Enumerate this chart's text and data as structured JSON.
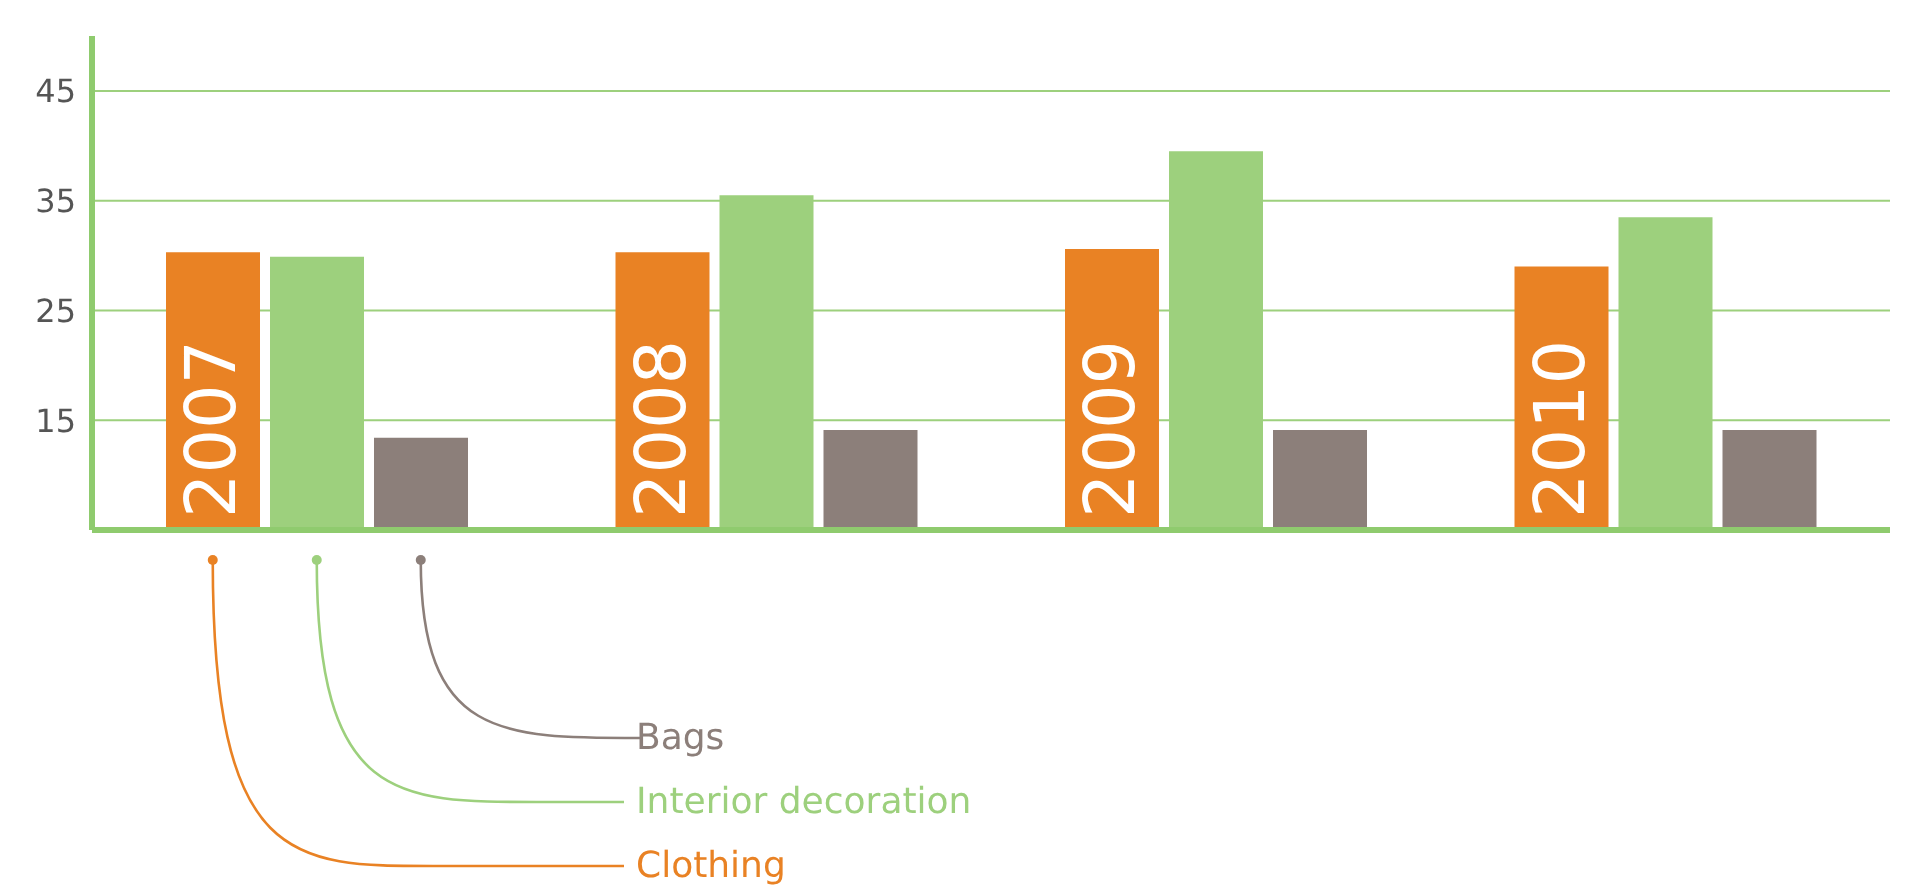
{
  "chart_data": {
    "type": "bar",
    "categories": [
      "2007",
      "2008",
      "2009",
      "2010"
    ],
    "series": [
      {
        "name": "Clothing",
        "color": "#e98224",
        "values": [
          30.3,
          30.3,
          30.6,
          29
        ]
      },
      {
        "name": "Interior decoration",
        "color": "#9dd07d",
        "values": [
          29.9,
          35.5,
          39.5,
          33.5
        ]
      },
      {
        "name": "Bags",
        "color": "#8c7f7a",
        "values": [
          13.4,
          14.1,
          14.1,
          14.1
        ]
      }
    ],
    "ylim": [
      5,
      50
    ],
    "yticks": [
      15,
      25,
      35,
      45
    ],
    "grid": "y",
    "legend": "bottom left"
  }
}
